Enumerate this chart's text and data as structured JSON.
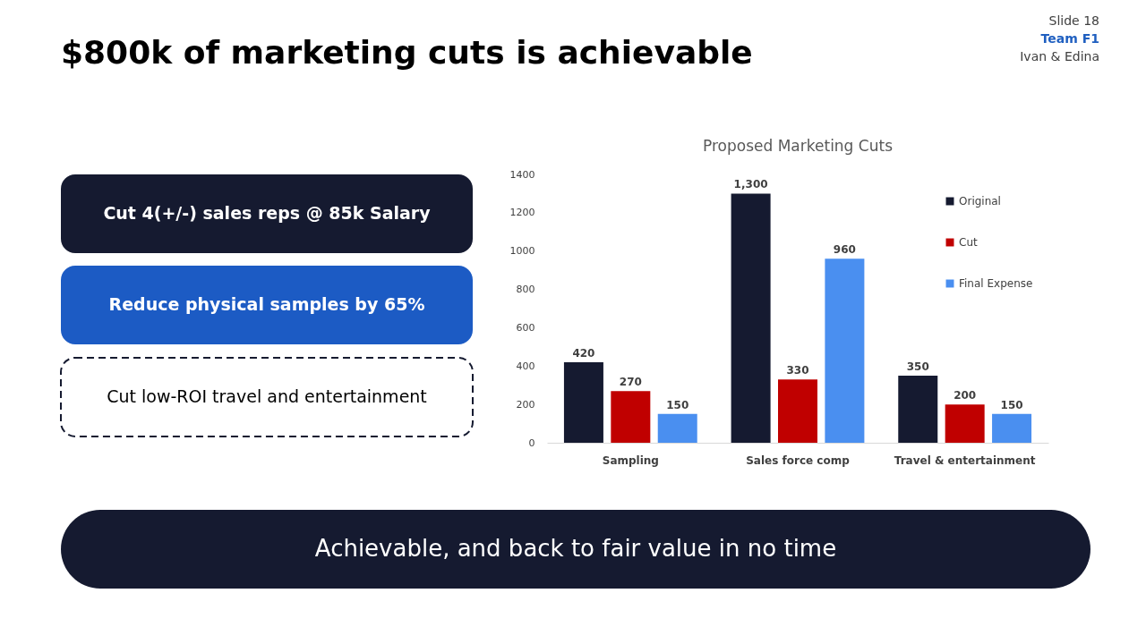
{
  "chart_data": {
    "type": "bar",
    "title": "$800k of marketing cuts is achievable",
    "subtitle": "Proposed Marketing Cuts",
    "categories": [
      "Sampling",
      "Sales force comp",
      "Travel & entertainment"
    ],
    "series": [
      {
        "name": "Original",
        "color": "#151a30",
        "values": [
          420,
          1300,
          350
        ]
      },
      {
        "name": "Cut",
        "color": "#c00000",
        "values": [
          270,
          330,
          200
        ]
      },
      {
        "name": "Final Expense",
        "color": "#4a8ff0",
        "values": [
          150,
          960,
          150
        ]
      }
    ],
    "ylim": [
      0,
      1400
    ],
    "yticks": [
      0,
      200,
      400,
      600,
      800,
      1000,
      1200,
      1400
    ],
    "value_labels": [
      "420",
      "1,300",
      "350",
      "270",
      "330",
      "200",
      "150",
      "960",
      "150"
    ],
    "grid": false,
    "legend": "top right",
    "annotations": [
      "Slide 18",
      "Team F1",
      "Ivan & Edina",
      "Cut 4(+/-) sales reps @ 85k Salary",
      "Reduce physical samples by 65%",
      "Cut low-ROI travel and entertainment",
      "Achievable, and back to fair value in no time"
    ]
  }
}
